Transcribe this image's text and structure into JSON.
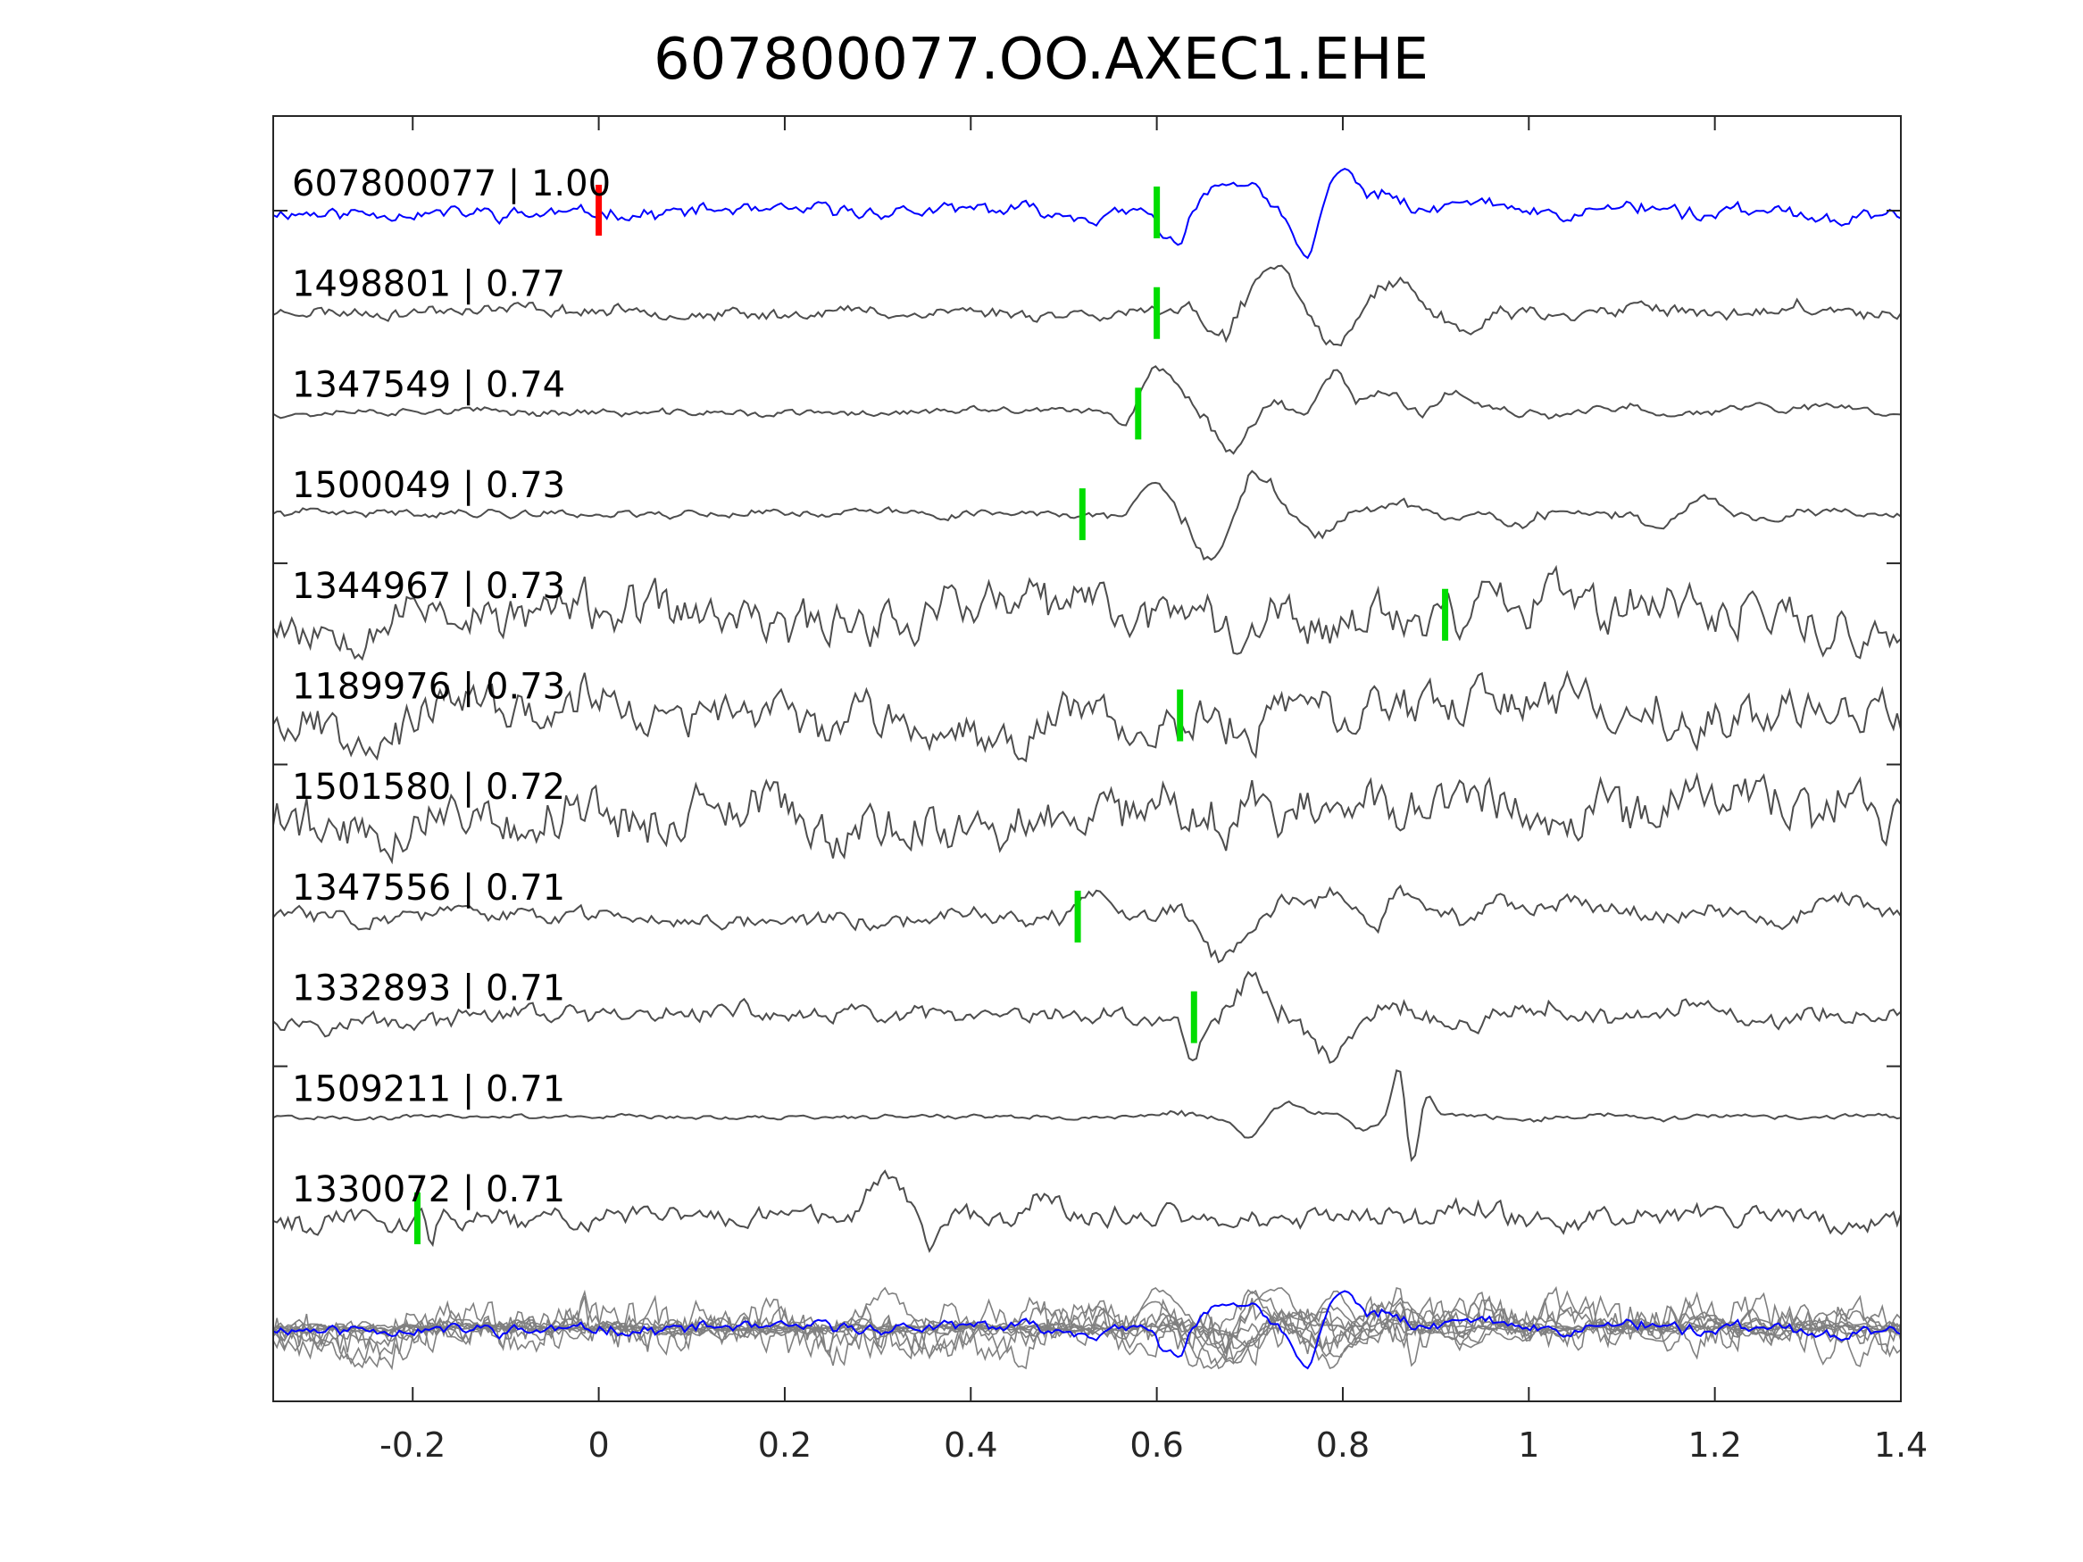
{
  "chart_data": {
    "type": "line",
    "title": "607800077.OO.AXEC1.EHE",
    "xlabel": "",
    "ylabel": "",
    "xlim": [
      -0.35,
      1.4
    ],
    "x_ticks": [
      -0.2,
      0,
      0.2,
      0.4,
      0.6,
      0.8,
      1,
      1.2,
      1.4
    ],
    "x_tick_labels": [
      "-0.2",
      "0",
      "0.2",
      "0.4",
      "0.6",
      "0.8",
      "1",
      "1.2",
      "1.4"
    ],
    "grid": false,
    "colors": {
      "reference_trace": "#0000ff",
      "match_trace": "#4d4d4d",
      "stack_trace": "#808080",
      "reference_pick": "#ff0000",
      "match_pick": "#00dd00",
      "axes": "#262626"
    },
    "traces": [
      {
        "label": "607800077 | 1.00",
        "id": "607800077",
        "cc": 1.0,
        "role": "reference",
        "pick": 0.6,
        "origin_pick": 0.0,
        "seed": 11,
        "noise": 0.28,
        "coda": 0.7,
        "signal": [
          [
            0.62,
            -0.7,
            0.025
          ],
          [
            0.66,
            0.35,
            0.025
          ],
          [
            0.7,
            0.5,
            0.03
          ],
          [
            0.76,
            -1.0,
            0.02
          ],
          [
            0.8,
            0.95,
            0.025
          ],
          [
            0.85,
            0.4,
            0.03
          ],
          [
            0.93,
            0.25,
            0.04
          ]
        ]
      },
      {
        "label": "1498801 | 0.77",
        "id": "1498801",
        "cc": 0.77,
        "role": "match",
        "pick": 0.6,
        "seed": 23,
        "noise": 0.2,
        "coda": 0.6,
        "signal": [
          [
            0.63,
            0.3,
            0.02
          ],
          [
            0.67,
            -0.6,
            0.025
          ],
          [
            0.73,
            1.0,
            0.035
          ],
          [
            0.79,
            -0.65,
            0.03
          ],
          [
            0.86,
            0.55,
            0.035
          ],
          [
            0.93,
            -0.35,
            0.03
          ]
        ]
      },
      {
        "label": "1347549 | 0.74",
        "id": "1347549",
        "cc": 0.74,
        "role": "match",
        "pick": 0.58,
        "seed": 37,
        "noise": 0.12,
        "coda": 0.55,
        "signal": [
          [
            0.57,
            -0.35,
            0.02
          ],
          [
            0.6,
            1.0,
            0.035
          ],
          [
            0.68,
            -0.75,
            0.03
          ],
          [
            0.73,
            0.35,
            0.03
          ],
          [
            0.79,
            0.65,
            0.025
          ],
          [
            0.85,
            0.45,
            0.03
          ],
          [
            0.92,
            0.35,
            0.03
          ],
          [
            1.33,
            0.3,
            0.05
          ]
        ]
      },
      {
        "label": "1500049 | 0.73",
        "id": "1500049",
        "cc": 0.73,
        "role": "match",
        "pick": 0.52,
        "seed": 41,
        "noise": 0.1,
        "coda": 0.5,
        "signal": [
          [
            0.6,
            0.5,
            0.03
          ],
          [
            0.66,
            -0.75,
            0.03
          ],
          [
            0.71,
            0.5,
            0.03
          ],
          [
            0.77,
            -0.2,
            0.03
          ],
          [
            0.99,
            -0.25,
            0.03
          ],
          [
            1.14,
            -0.3,
            0.03
          ],
          [
            1.2,
            0.25,
            0.04
          ]
        ]
      },
      {
        "label": "1344967 | 0.73",
        "id": "1344967",
        "cc": 0.73,
        "role": "match",
        "pick": 0.91,
        "seed": 53,
        "noise": 0.5,
        "coda": 0.2,
        "signal": [
          [
            0.96,
            0.55,
            0.02
          ],
          [
            1.03,
            0.35,
            0.03
          ]
        ]
      },
      {
        "label": "1189976 | 0.73",
        "id": "1189976",
        "cc": 0.73,
        "role": "match",
        "pick": 0.625,
        "seed": 67,
        "noise": 0.42,
        "coda": 0.3,
        "signal": [
          [
            0.7,
            -0.55,
            0.02
          ],
          [
            0.76,
            0.5,
            0.025
          ]
        ]
      },
      {
        "label": "1501580 | 0.72",
        "id": "1501580",
        "cc": 0.72,
        "role": "match",
        "pick": null,
        "seed": 79,
        "noise": 0.62,
        "coda": 0.1,
        "signal": [
          [
            1.23,
            0.45,
            0.02
          ],
          [
            1.34,
            0.4,
            0.02
          ]
        ]
      },
      {
        "label": "1347556 | 0.71",
        "id": "1347556",
        "cc": 0.71,
        "role": "match",
        "pick": 0.515,
        "seed": 83,
        "noise": 0.22,
        "coda": 0.6,
        "signal": [
          [
            0.53,
            0.45,
            0.02
          ],
          [
            0.67,
            -0.5,
            0.03
          ],
          [
            0.79,
            0.45,
            0.025
          ],
          [
            0.86,
            0.45,
            0.025
          ],
          [
            0.97,
            0.35,
            0.03
          ],
          [
            1.33,
            0.25,
            0.04
          ]
        ]
      },
      {
        "label": "1332893 | 0.71",
        "id": "1332893",
        "cc": 0.71,
        "role": "match",
        "pick": 0.64,
        "seed": 97,
        "noise": 0.2,
        "coda": 0.5,
        "signal": [
          [
            0.64,
            -0.45,
            0.015
          ],
          [
            0.7,
            0.5,
            0.03
          ],
          [
            0.78,
            -0.4,
            0.03
          ],
          [
            0.85,
            0.15,
            0.03
          ]
        ]
      },
      {
        "label": "1509211 | 0.71",
        "id": "1509211",
        "cc": 0.71,
        "role": "match",
        "pick": null,
        "seed": 101,
        "noise": 0.04,
        "coda": 0.15,
        "signal": [
          [
            0.7,
            -0.18,
            0.02
          ],
          [
            0.74,
            0.15,
            0.025
          ],
          [
            0.82,
            -0.15,
            0.02
          ],
          [
            0.86,
            0.6,
            0.012
          ],
          [
            0.875,
            -0.55,
            0.012
          ],
          [
            0.89,
            0.25,
            0.012
          ]
        ]
      },
      {
        "label": "1330072 | 0.71",
        "id": "1330072",
        "cc": 0.71,
        "role": "match",
        "pick": -0.195,
        "seed": 113,
        "noise": 0.32,
        "coda": 0.3,
        "signal": [
          [
            -0.18,
            -0.5,
            0.01
          ],
          [
            0.31,
            0.7,
            0.035
          ],
          [
            0.36,
            -0.45,
            0.025
          ],
          [
            0.48,
            0.35,
            0.03
          ]
        ]
      }
    ],
    "stack": {
      "label": "",
      "overlay_of": "all traces",
      "reference_color": "#0000ff",
      "others_color": "#808080"
    }
  }
}
